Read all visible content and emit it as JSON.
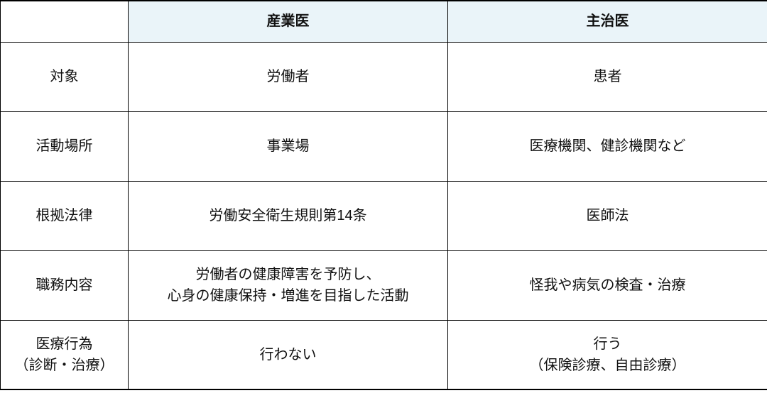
{
  "table": {
    "header_bg": "#eaf4f9",
    "columns": {
      "rowHeader": "",
      "col1": "産業医",
      "col2": "主治医"
    },
    "rows": [
      {
        "label": "対象",
        "col1": "労働者",
        "col2": "患者"
      },
      {
        "label": "活動場所",
        "col1": "事業場",
        "col2": "医療機関、健診機関など"
      },
      {
        "label": "根拠法律",
        "col1": "労働安全衛生規則第14条",
        "col2": "医師法"
      },
      {
        "label": "職務内容",
        "col1": "労働者の健康障害を予防し、\n心身の健康保持・増進を目指した活動",
        "col2": "怪我や病気の検査・治療"
      },
      {
        "label": "医療行為\n（診断・治療）",
        "col1": "行わない",
        "col2": "行う\n（保険診療、自由診療）"
      }
    ]
  }
}
